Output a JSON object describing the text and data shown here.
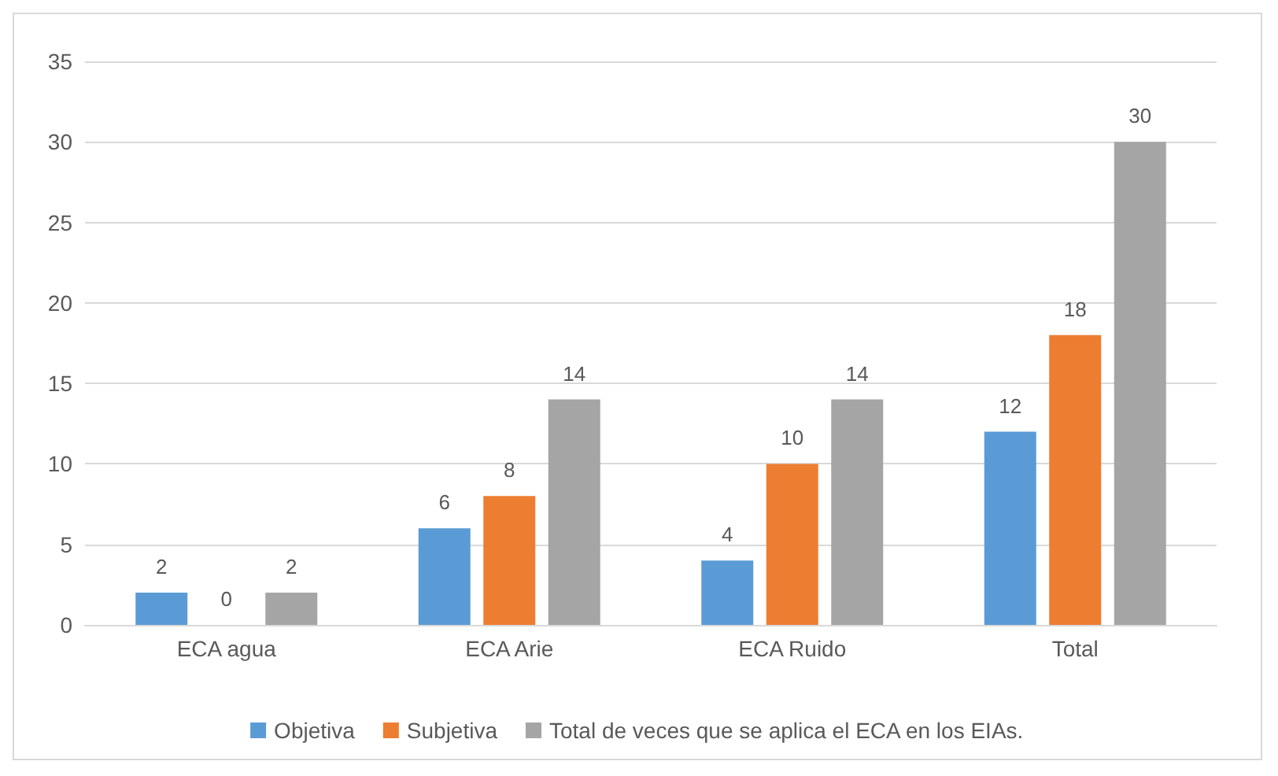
{
  "chart_data": {
    "type": "bar",
    "categories": [
      "ECA agua",
      "ECA Arie",
      "ECA Ruido",
      "Total"
    ],
    "series": [
      {
        "name": "Objetiva",
        "color": "#5b9bd5",
        "values": [
          2,
          6,
          4,
          12
        ]
      },
      {
        "name": "Subjetiva",
        "color": "#ed7d31",
        "values": [
          0,
          8,
          10,
          18
        ]
      },
      {
        "name": "Total de veces que se aplica el ECA en los EIAs.",
        "color": "#a5a5a5",
        "values": [
          2,
          14,
          14,
          30
        ]
      }
    ],
    "ylim": [
      0,
      35
    ],
    "yticks": [
      0,
      5,
      10,
      15,
      20,
      25,
      30,
      35
    ],
    "grid": "y",
    "legend": "bottom",
    "data_labels": true
  }
}
